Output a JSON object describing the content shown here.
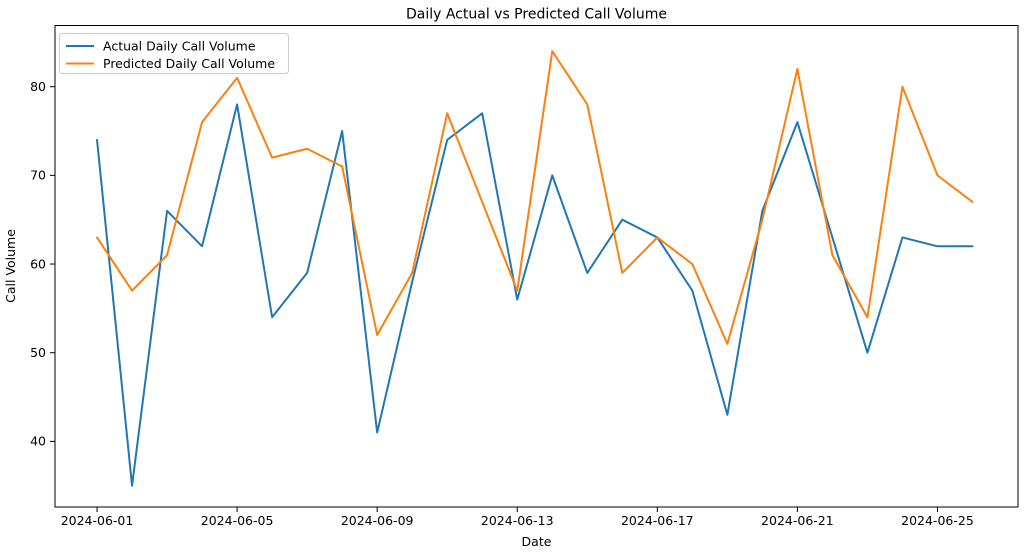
{
  "chart_data": {
    "type": "line",
    "title": "Daily Actual vs Predicted Call Volume",
    "xlabel": "Date",
    "ylabel": "Call Volume",
    "x": [
      "2024-06-01",
      "2024-06-02",
      "2024-06-03",
      "2024-06-04",
      "2024-06-05",
      "2024-06-06",
      "2024-06-07",
      "2024-06-08",
      "2024-06-09",
      "2024-06-10",
      "2024-06-11",
      "2024-06-12",
      "2024-06-13",
      "2024-06-14",
      "2024-06-15",
      "2024-06-16",
      "2024-06-17",
      "2024-06-18",
      "2024-06-19",
      "2024-06-20",
      "2024-06-21",
      "2024-06-22",
      "2024-06-23",
      "2024-06-24",
      "2024-06-25",
      "2024-06-26"
    ],
    "series": [
      {
        "name": "Actual Daily Call Volume",
        "color": "#1f77b4",
        "values": [
          74,
          35,
          66,
          62,
          78,
          54,
          59,
          75,
          41,
          58,
          74,
          77,
          56,
          70,
          59,
          65,
          63,
          57,
          43,
          66,
          76,
          63,
          50,
          63,
          62,
          62
        ]
      },
      {
        "name": "Predicted Daily Call Volume",
        "color": "#ff7f0e",
        "values": [
          63,
          57,
          61,
          76,
          81,
          72,
          73,
          71,
          52,
          59,
          77,
          67,
          57,
          84,
          78,
          59,
          63,
          60,
          51,
          65,
          82,
          61,
          54,
          80,
          70,
          67
        ]
      }
    ],
    "x_tick_indices": [
      0,
      4,
      8,
      12,
      16,
      20,
      24
    ],
    "x_tick_labels": [
      "2024-06-01",
      "2024-06-05",
      "2024-06-09",
      "2024-06-13",
      "2024-06-17",
      "2024-06-21",
      "2024-06-25"
    ],
    "y_ticks": [
      40,
      50,
      60,
      70,
      80
    ],
    "ylim": [
      32.6,
      86.9
    ],
    "xlim_index": [
      -1.2,
      26.3
    ],
    "grid": false,
    "legend_position": "upper-left",
    "background": "#ffffff",
    "spine_color": "#000000"
  }
}
